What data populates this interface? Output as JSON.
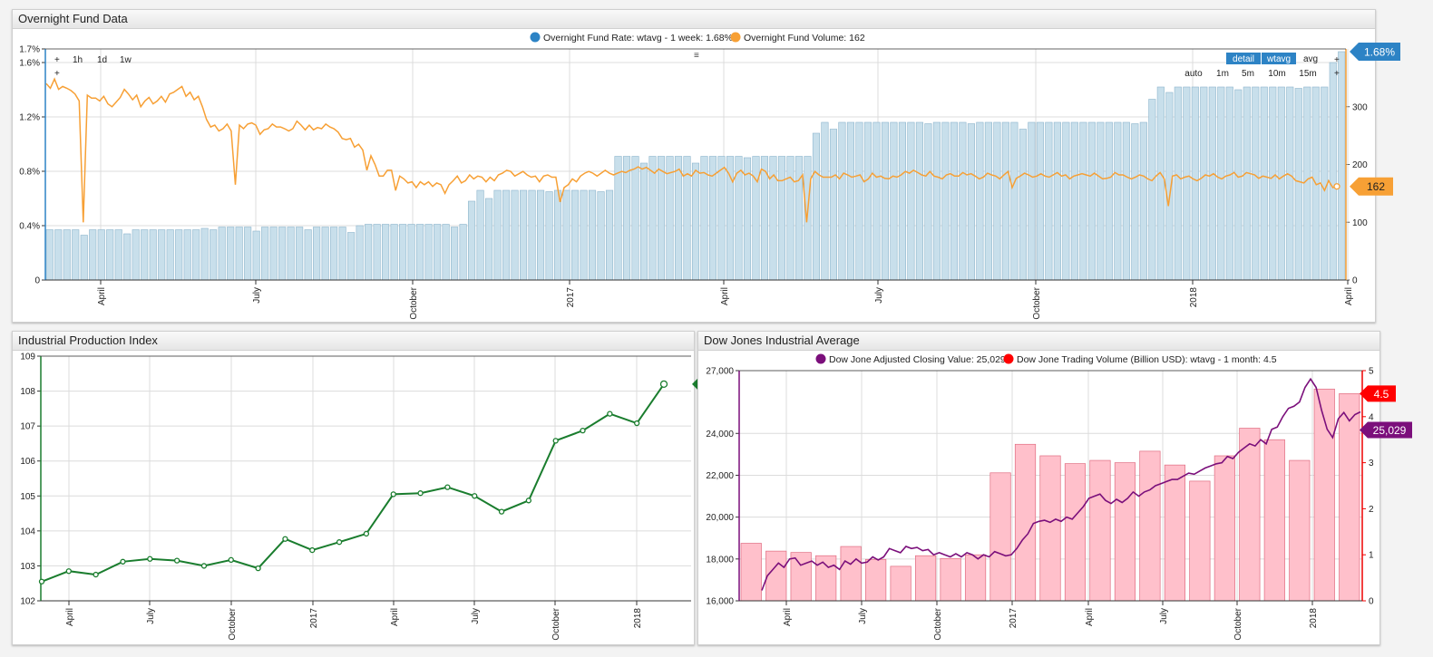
{
  "panels": {
    "fund": {
      "title": "Overnight Fund Data"
    },
    "ipi": {
      "title": "Industrial Production Index"
    },
    "dow": {
      "title": "Dow Jones Industrial Average"
    }
  },
  "controls": {
    "periods": [
      "1h",
      "1d",
      "1w"
    ],
    "plus": "+",
    "menu": "≡",
    "modes": [
      "detail",
      "wtavg",
      "avg"
    ],
    "intervals": [
      "auto",
      "1m",
      "5m",
      "10m",
      "15m"
    ]
  },
  "chart_data": [
    {
      "id": "fund",
      "type": "bar+line",
      "title": "Overnight Fund Data",
      "legend": [
        "Overnight Fund Rate: wtavg - 1 week: 1.68%",
        "Overnight Fund Volume: 162"
      ],
      "legend_colors": [
        "#2d83c5",
        "#f7a035"
      ],
      "x_ticks": [
        "April",
        "July",
        "October",
        "2017",
        "April",
        "July",
        "October",
        "2018",
        "April"
      ],
      "y_left_ticks": [
        "0",
        "0.4%",
        "0.8%",
        "1.2%",
        "1.6%",
        "1.7%"
      ],
      "y_left_range": [
        0,
        1.7
      ],
      "y_right_ticks": [
        "0",
        "100",
        "200",
        "300"
      ],
      "y_right_range": [
        0,
        400
      ],
      "rate_bars": [
        0.37,
        0.37,
        0.37,
        0.37,
        0.33,
        0.37,
        0.37,
        0.37,
        0.37,
        0.34,
        0.37,
        0.37,
        0.37,
        0.37,
        0.37,
        0.37,
        0.37,
        0.37,
        0.38,
        0.37,
        0.39,
        0.39,
        0.39,
        0.39,
        0.36,
        0.39,
        0.39,
        0.39,
        0.39,
        0.39,
        0.37,
        0.39,
        0.39,
        0.39,
        0.39,
        0.35,
        0.4,
        0.41,
        0.41,
        0.41,
        0.41,
        0.41,
        0.41,
        0.41,
        0.41,
        0.41,
        0.41,
        0.39,
        0.41,
        0.58,
        0.66,
        0.6,
        0.66,
        0.66,
        0.66,
        0.66,
        0.66,
        0.66,
        0.65,
        0.66,
        0.66,
        0.66,
        0.66,
        0.66,
        0.65,
        0.66,
        0.91,
        0.91,
        0.91,
        0.86,
        0.91,
        0.91,
        0.91,
        0.91,
        0.91,
        0.86,
        0.91,
        0.91,
        0.91,
        0.91,
        0.91,
        0.9,
        0.91,
        0.91,
        0.91,
        0.91,
        0.91,
        0.91,
        0.91,
        1.08,
        1.16,
        1.11,
        1.16,
        1.16,
        1.16,
        1.16,
        1.16,
        1.16,
        1.16,
        1.16,
        1.16,
        1.16,
        1.15,
        1.16,
        1.16,
        1.16,
        1.16,
        1.15,
        1.16,
        1.16,
        1.16,
        1.16,
        1.16,
        1.11,
        1.16,
        1.16,
        1.16,
        1.16,
        1.16,
        1.16,
        1.16,
        1.16,
        1.16,
        1.16,
        1.16,
        1.16,
        1.15,
        1.16,
        1.33,
        1.42,
        1.38,
        1.42,
        1.42,
        1.42,
        1.42,
        1.42,
        1.42,
        1.42,
        1.4,
        1.42,
        1.42,
        1.42,
        1.42,
        1.42,
        1.42,
        1.41,
        1.42,
        1.42,
        1.42,
        1.6,
        1.68
      ],
      "volume_line": [
        340,
        332,
        348,
        330,
        335,
        332,
        328,
        322,
        310,
        100,
        320,
        315,
        315,
        310,
        318,
        305,
        300,
        308,
        316,
        330,
        322,
        312,
        320,
        300,
        310,
        316,
        305,
        310,
        318,
        308,
        322,
        325,
        330,
        335,
        318,
        325,
        312,
        318,
        300,
        278,
        265,
        268,
        258,
        262,
        270,
        258,
        165,
        268,
        262,
        270,
        272,
        268,
        252,
        260,
        262,
        270,
        265,
        265,
        262,
        258,
        262,
        275,
        268,
        260,
        268,
        260,
        264,
        262,
        270,
        265,
        262,
        256,
        245,
        243,
        245,
        230,
        235,
        225,
        190,
        215,
        200,
        180,
        180,
        190,
        190,
        155,
        180,
        175,
        168,
        170,
        160,
        170,
        165,
        170,
        162,
        168,
        165,
        150,
        165,
        172,
        180,
        168,
        172,
        182,
        175,
        180,
        178,
        170,
        178,
        172,
        182,
        185,
        190,
        188,
        180,
        184,
        188,
        182,
        178,
        180,
        170,
        180,
        182,
        178,
        178,
        135,
        160,
        165,
        175,
        170,
        180,
        185,
        188,
        185,
        180,
        185,
        190,
        185,
        182,
        185,
        188,
        186,
        190,
        192,
        196,
        192,
        195,
        190,
        185,
        192,
        188,
        184,
        186,
        188,
        192,
        180,
        184,
        180,
        190,
        185,
        186,
        182,
        180,
        185,
        190,
        195,
        185,
        170,
        185,
        190,
        182,
        185,
        180,
        170,
        192,
        188,
        175,
        182,
        172,
        172,
        175,
        178,
        170,
        172,
        182,
        100,
        175,
        188,
        182,
        178,
        178,
        178,
        182,
        175,
        185,
        182,
        178,
        180,
        182,
        170,
        175,
        185,
        178,
        180,
        176,
        175,
        180,
        178,
        182,
        188,
        185,
        190,
        186,
        182,
        180,
        188,
        180,
        178,
        175,
        182,
        184,
        180,
        180,
        186,
        182,
        184,
        180,
        175,
        178,
        185,
        182,
        180,
        175,
        182,
        188,
        160,
        176,
        180,
        185,
        182,
        178,
        180,
        184,
        180,
        178,
        182,
        186,
        180,
        182,
        175,
        180,
        182,
        184,
        182,
        180,
        185,
        180,
        175,
        176,
        178,
        186,
        182,
        182,
        178,
        175,
        178,
        182,
        180,
        175,
        172,
        180,
        186,
        175,
        128,
        180,
        182,
        175,
        178,
        180,
        175,
        172,
        176,
        182,
        180,
        184,
        178,
        175,
        180,
        182,
        186,
        178,
        180,
        186,
        184,
        182,
        176,
        180,
        178,
        176,
        182,
        175,
        180,
        184,
        180,
        172,
        170,
        168,
        175,
        178,
        165,
        168,
        155,
        172,
        160,
        162
      ],
      "rate_value_label": "1.68%",
      "volume_value_label": "162"
    },
    {
      "id": "ipi",
      "type": "line",
      "title": "Industrial Production Index",
      "x_ticks": [
        "April",
        "July",
        "October",
        "2017",
        "April",
        "July",
        "October",
        "2018"
      ],
      "y_ticks": [
        "102",
        "103",
        "104",
        "105",
        "106",
        "107",
        "108",
        "109"
      ],
      "y_range": [
        102,
        109
      ],
      "values": [
        102.55,
        102.85,
        102.75,
        103.12,
        103.2,
        103.15,
        103.0,
        103.17,
        102.93,
        103.77,
        103.45,
        103.68,
        103.92,
        105.05,
        105.08,
        105.25,
        105.0,
        104.55,
        104.87,
        106.58,
        106.87,
        107.35,
        107.08,
        108.2
      ],
      "value_label": "108.2"
    },
    {
      "id": "dow",
      "type": "bar+line",
      "title": "Dow Jones Industrial Average",
      "legend": [
        "Dow Jone Adjusted Closing Value: 25,029",
        "Dow Jone Trading Volume (Billion USD): wtavg - 1 month: 4.5"
      ],
      "legend_colors": [
        "#7b0f7b",
        "#ff0000"
      ],
      "x_ticks": [
        "April",
        "July",
        "October",
        "2017",
        "April",
        "July",
        "October",
        "2018"
      ],
      "y_left_ticks": [
        "16,000",
        "18,000",
        "20,000",
        "22,000",
        "24,000",
        "27,000"
      ],
      "y_left_range": [
        16000,
        27000
      ],
      "y_right_ticks": [
        "0",
        "1",
        "2",
        "3",
        "4",
        "5"
      ],
      "y_right_range": [
        0,
        5
      ],
      "volume_bars": [
        1.25,
        1.08,
        1.05,
        0.98,
        1.18,
        0.9,
        0.75,
        0.98,
        0.92,
        1.0,
        2.78,
        3.4,
        3.15,
        2.98,
        3.05,
        3.0,
        3.25,
        2.95,
        2.6,
        3.15,
        3.75,
        3.5,
        3.05,
        4.6,
        4.5
      ],
      "close_line": [
        16500,
        17200,
        17500,
        17800,
        17600,
        18000,
        18050,
        17700,
        17800,
        17900,
        17700,
        17850,
        17600,
        17700,
        17500,
        17900,
        17750,
        18000,
        17800,
        17850,
        18100,
        17950,
        18100,
        18500,
        18400,
        18300,
        18600,
        18500,
        18550,
        18400,
        18450,
        18200,
        18300,
        18200,
        18100,
        18250,
        18100,
        18300,
        18200,
        18000,
        18200,
        18100,
        18350,
        18250,
        18150,
        18200,
        18500,
        18900,
        19200,
        19700,
        19800,
        19850,
        19750,
        19900,
        19800,
        20000,
        19900,
        20200,
        20500,
        20900,
        21000,
        21100,
        20800,
        20650,
        20850,
        20700,
        20900,
        21200,
        21000,
        21200,
        21300,
        21500,
        21600,
        21700,
        21800,
        21800,
        21950,
        22100,
        22050,
        22200,
        22350,
        22450,
        22550,
        22600,
        22900,
        22800,
        23100,
        23300,
        23500,
        23400,
        23700,
        23500,
        24200,
        24300,
        24800,
        25200,
        25300,
        25500,
        26200,
        26600,
        26200,
        25100,
        24200,
        23800,
        24700,
        25000,
        24600,
        24900,
        25029
      ],
      "close_value_label": "25,029",
      "volume_value_label": "4.5"
    }
  ]
}
